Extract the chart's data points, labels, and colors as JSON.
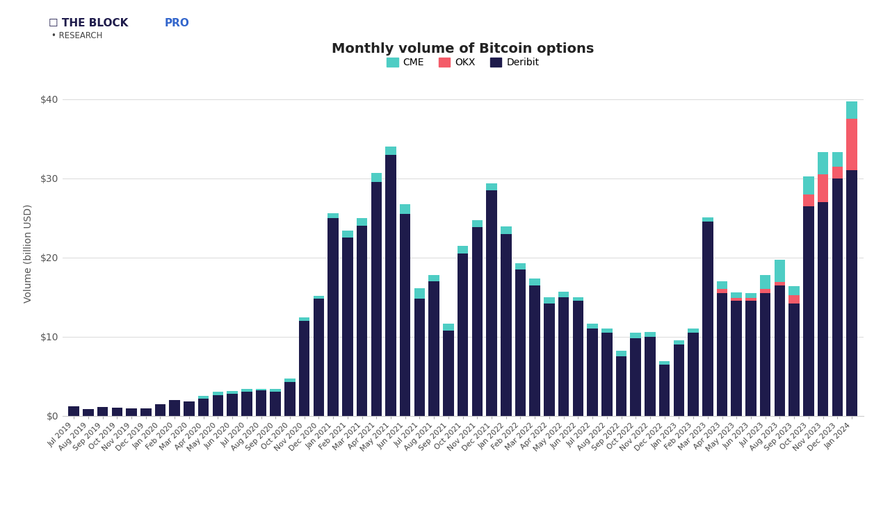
{
  "title": "Monthly volume of Bitcoin options",
  "ylabel": "Volume (billion USD)",
  "colors": {
    "CME": "#4ecdc4",
    "OKX": "#f45b69",
    "Deribit": "#1e1b4b"
  },
  "background": "#ffffff",
  "categories": [
    "Jul 2019",
    "Aug 2019",
    "Sep 2019",
    "Oct 2019",
    "Nov 2019",
    "Dec 2019",
    "Jan 2020",
    "Feb 2020",
    "Mar 2020",
    "Apr 2020",
    "May 2020",
    "Jun 2020",
    "Jul 2020",
    "Aug 2020",
    "Sep 2020",
    "Oct 2020",
    "Nov 2020",
    "Dec 2020",
    "Jan 2021",
    "Feb 2021",
    "Mar 2021",
    "Apr 2021",
    "May 2021",
    "Jun 2021",
    "Jul 2021",
    "Aug 2021",
    "Sep 2021",
    "Oct 2021",
    "Nov 2021",
    "Dec 2021",
    "Jan 2022",
    "Feb 2022",
    "Mar 2022",
    "Apr 2022",
    "May 2022",
    "Jun 2022",
    "Jul 2022",
    "Aug 2022",
    "Sep 2022",
    "Oct 2022",
    "Nov 2022",
    "Dec 2022",
    "Jan 2023",
    "Feb 2023",
    "Mar 2023",
    "Apr 2023",
    "May 2023",
    "Jun 2023",
    "Jul 2023",
    "Aug 2023",
    "Sep 2023",
    "Oct 2023",
    "Nov 2023",
    "Dec 2023",
    "Jan 2024"
  ],
  "deribit": [
    1.2,
    0.85,
    1.1,
    1.0,
    0.9,
    0.9,
    1.5,
    2.0,
    1.8,
    2.2,
    2.6,
    2.8,
    3.0,
    3.2,
    3.0,
    4.3,
    12.0,
    14.8,
    25.0,
    22.5,
    24.0,
    29.5,
    33.0,
    25.5,
    14.8,
    17.0,
    10.8,
    20.5,
    23.8,
    28.5,
    23.0,
    18.5,
    16.5,
    14.2,
    15.0,
    14.5,
    11.0,
    10.5,
    7.5,
    9.8,
    10.0,
    6.5,
    9.0,
    10.5,
    24.5,
    15.5,
    14.5,
    14.5,
    15.5,
    16.5,
    14.2,
    26.5,
    27.0,
    30.0,
    31.0
  ],
  "okx": [
    0.0,
    0.0,
    0.0,
    0.0,
    0.0,
    0.0,
    0.0,
    0.0,
    0.0,
    0.0,
    0.0,
    0.0,
    0.0,
    0.0,
    0.0,
    0.0,
    0.0,
    0.0,
    0.0,
    0.0,
    0.0,
    0.0,
    0.0,
    0.0,
    0.0,
    0.0,
    0.0,
    0.0,
    0.0,
    0.0,
    0.0,
    0.0,
    0.0,
    0.0,
    0.0,
    0.0,
    0.0,
    0.0,
    0.0,
    0.0,
    0.0,
    0.0,
    0.0,
    0.0,
    0.0,
    0.5,
    0.4,
    0.4,
    0.5,
    0.4,
    1.0,
    1.5,
    3.5,
    1.5,
    6.5
  ],
  "cme": [
    0.0,
    0.0,
    0.0,
    0.0,
    0.0,
    0.0,
    0.0,
    0.0,
    0.0,
    0.3,
    0.4,
    0.3,
    0.4,
    0.2,
    0.4,
    0.4,
    0.4,
    0.35,
    0.6,
    0.9,
    1.0,
    1.2,
    1.0,
    1.2,
    1.3,
    0.8,
    0.8,
    1.0,
    0.9,
    0.9,
    0.9,
    0.8,
    0.8,
    0.8,
    0.7,
    0.5,
    0.6,
    0.5,
    0.7,
    0.7,
    0.6,
    0.4,
    0.5,
    0.5,
    0.6,
    1.0,
    0.7,
    0.6,
    1.8,
    2.8,
    1.2,
    2.2,
    2.8,
    1.8,
    2.2
  ],
  "ylim": [
    0,
    41
  ],
  "yticks": [
    0,
    10,
    20,
    30,
    40
  ],
  "ytick_labels": [
    "$0",
    "$10",
    "$20",
    "$30",
    "$40"
  ]
}
